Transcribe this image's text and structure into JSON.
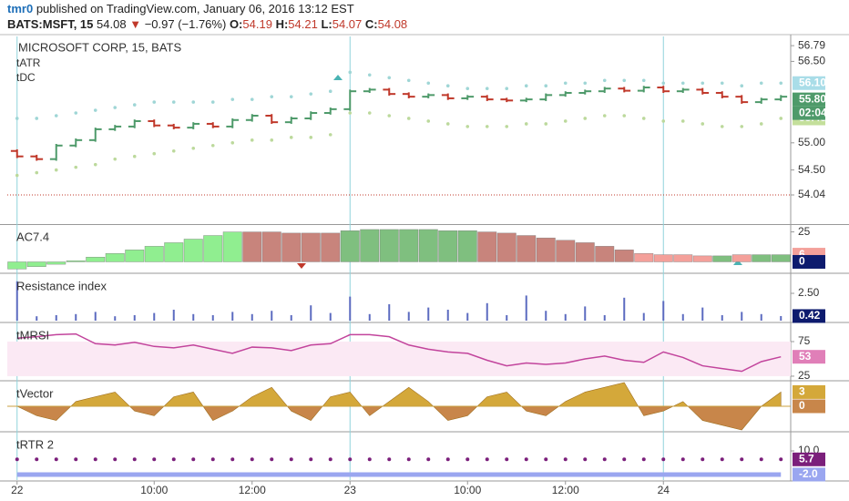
{
  "header": {
    "author": "tmr0",
    "published": "published on TradingView.com, January 06, 2016 13:12 EST",
    "symbol": "BATS:MSFT, 15",
    "last": "54.08",
    "change": "−0.97 (−1.76%)",
    "open_label": "O:",
    "open": "54.19",
    "high_label": "H:",
    "high": "54.21",
    "low_label": "L:",
    "low": "54.07",
    "close_label": "C:",
    "close": "54.08"
  },
  "chart_data": [
    {
      "type": "ohlc",
      "title": "MICROSOFT CORP, 15, BATS",
      "labels": [
        "tATR",
        "tDC"
      ],
      "categories": [
        "22",
        null,
        null,
        null,
        null,
        null,
        null,
        "10:00",
        null,
        null,
        null,
        null,
        "12:00",
        null,
        null,
        null,
        null,
        "23",
        null,
        null,
        null,
        null,
        null,
        "10:00",
        null,
        null,
        null,
        null,
        "12:00",
        null,
        null,
        null,
        null,
        "24",
        null,
        null,
        null,
        null,
        null,
        null
      ],
      "open": [
        54.85,
        54.75,
        54.7,
        54.95,
        55.05,
        55.25,
        55.3,
        55.4,
        55.32,
        55.28,
        55.35,
        55.3,
        55.42,
        55.5,
        55.38,
        55.45,
        55.55,
        55.62,
        55.95,
        55.98,
        55.9,
        55.85,
        55.88,
        55.82,
        55.85,
        55.8,
        55.78,
        55.8,
        55.88,
        55.92,
        55.95,
        56.0,
        55.96,
        56.02,
        55.95,
        55.98,
        55.92,
        55.85,
        55.75,
        55.8
      ],
      "high": [
        54.88,
        54.78,
        54.98,
        55.08,
        55.28,
        55.33,
        55.43,
        55.43,
        55.35,
        55.38,
        55.38,
        55.45,
        55.53,
        55.53,
        55.48,
        55.58,
        55.65,
        55.98,
        56.01,
        56.01,
        55.93,
        55.91,
        55.91,
        55.88,
        55.88,
        55.83,
        55.83,
        55.91,
        55.95,
        55.98,
        56.03,
        56.03,
        56.05,
        56.05,
        56.01,
        56.01,
        55.95,
        55.88,
        55.83,
        55.88
      ],
      "low": [
        54.72,
        54.67,
        54.67,
        54.92,
        55.02,
        55.22,
        55.27,
        55.29,
        55.25,
        55.25,
        55.27,
        55.27,
        55.39,
        55.35,
        55.35,
        55.42,
        55.52,
        55.59,
        55.92,
        55.87,
        55.82,
        55.82,
        55.79,
        55.79,
        55.77,
        55.75,
        55.75,
        55.77,
        55.85,
        55.89,
        55.92,
        55.93,
        55.93,
        55.92,
        55.92,
        55.89,
        55.82,
        55.72,
        55.72,
        55.77
      ],
      "close": [
        54.75,
        54.7,
        54.95,
        55.05,
        55.25,
        55.3,
        55.4,
        55.32,
        55.28,
        55.35,
        55.3,
        55.42,
        55.5,
        55.38,
        55.45,
        55.55,
        55.62,
        55.95,
        55.98,
        55.9,
        55.85,
        55.88,
        55.82,
        55.85,
        55.8,
        55.78,
        55.8,
        55.88,
        55.92,
        55.95,
        56.0,
        55.96,
        56.02,
        55.95,
        55.98,
        55.92,
        55.85,
        55.75,
        55.8,
        55.85
      ],
      "up_color": "#4e9a6a",
      "down_color": "#c0392b",
      "series": [
        {
          "color": "#9fd6d6",
          "values": [
            55.45,
            55.45,
            55.5,
            55.55,
            55.6,
            55.65,
            55.7,
            55.75,
            55.75,
            55.75,
            55.75,
            55.8,
            55.8,
            55.85,
            55.85,
            55.9,
            55.95,
            56.3,
            56.25,
            56.2,
            56.15,
            56.1,
            56.05,
            56.0,
            56.0,
            56.0,
            56.05,
            56.05,
            56.1,
            56.1,
            56.15,
            56.15,
            56.15,
            56.1,
            56.1,
            56.1,
            56.1,
            56.05,
            56.1,
            56.1
          ]
        },
        {
          "color": "#bcd99c",
          "values": [
            54.4,
            54.45,
            54.5,
            54.55,
            54.6,
            54.7,
            54.75,
            54.8,
            54.85,
            54.9,
            54.95,
            55.0,
            55.05,
            55.05,
            55.1,
            55.1,
            55.15,
            55.55,
            55.55,
            55.5,
            55.45,
            55.4,
            55.35,
            55.3,
            55.3,
            55.3,
            55.35,
            55.35,
            55.4,
            55.45,
            55.5,
            55.5,
            55.45,
            55.4,
            55.4,
            55.35,
            55.3,
            55.3,
            55.35,
            55.45
          ]
        }
      ],
      "price_line": 54.04,
      "ylim": [
        53.52,
        56.96
      ],
      "yticks": [
        56.79,
        {
          "value": 56.5,
          "label": "56.50"
        },
        {
          "value": 55,
          "label": "55.00"
        },
        {
          "value": 54.5,
          "label": "54.50"
        },
        54.04
      ],
      "last_labels": [
        {
          "value": 56.1,
          "label": "56.10",
          "color": "#a9dde8"
        },
        {
          "value": 55.8,
          "label": "55.80",
          "color": "#4e9a6a"
        },
        {
          "value": 55.45,
          "label": "55.45",
          "color": "#c4df9b"
        }
      ],
      "countdown": "02:04"
    },
    {
      "type": "bar",
      "title": "AC7.4",
      "values": [
        -6,
        -4,
        -2,
        1,
        4,
        7,
        10,
        13,
        16,
        19,
        22,
        25,
        25,
        25,
        24,
        24,
        24,
        26,
        27,
        27,
        27,
        27,
        26,
        26,
        25,
        24,
        22,
        20,
        18,
        16,
        13,
        10,
        7,
        6,
        6,
        5,
        5,
        6,
        6,
        6
      ],
      "colors": [
        "#90ee90",
        "#90ee90",
        "#90ee90",
        "#90ee90",
        "#90ee90",
        "#90ee90",
        "#90ee90",
        "#90ee90",
        "#90ee90",
        "#90ee90",
        "#90ee90",
        "#90ee90",
        "#c8847c",
        "#c8847c",
        "#c8847c",
        "#c8847c",
        "#c8847c",
        "#7fbf7f",
        "#7fbf7f",
        "#7fbf7f",
        "#7fbf7f",
        "#7fbf7f",
        "#7fbf7f",
        "#7fbf7f",
        "#c8847c",
        "#c8847c",
        "#c8847c",
        "#c8847c",
        "#c8847c",
        "#c8847c",
        "#c8847c",
        "#c8847c",
        "#f4a09a",
        "#f4a09a",
        "#f4a09a",
        "#f4a09a",
        "#7fbf7f",
        "#f4a09a",
        "#7fbf7f",
        "#7fbf7f"
      ],
      "ylim": [
        -8,
        30
      ],
      "yticks": [
        25
      ],
      "last_labels": [
        {
          "value": 6,
          "label": "6",
          "color": "#f4a09a"
        },
        {
          "value": 0,
          "label": "0",
          "color": "#0d1b6e"
        }
      ]
    },
    {
      "type": "bar",
      "title": "Resistance index",
      "color": "#5c6bc0",
      "values": [
        3.6,
        0.4,
        0.5,
        0.6,
        0.8,
        0.4,
        0.5,
        0.7,
        1.0,
        0.6,
        0.5,
        0.8,
        0.6,
        0.9,
        0.5,
        1.4,
        0.7,
        2.2,
        0.6,
        1.5,
        0.8,
        1.2,
        1.0,
        0.7,
        1.6,
        0.5,
        2.3,
        0.9,
        0.6,
        1.3,
        0.5,
        2.1,
        0.7,
        1.8,
        0.6,
        1.2,
        0.5,
        0.8,
        0.6,
        0.42
      ],
      "ylim": [
        0,
        4.17
      ],
      "yticks": [
        {
          "value": 2.5,
          "label": "2.50"
        }
      ],
      "last_labels": [
        {
          "value": 0.42,
          "label": "0.42",
          "color": "#0d1b6e"
        }
      ]
    },
    {
      "type": "line",
      "title": "tMRSI",
      "color": "#c2449c",
      "values": [
        80,
        82,
        85,
        86,
        72,
        70,
        74,
        68,
        66,
        70,
        64,
        58,
        67,
        66,
        62,
        70,
        72,
        85,
        85,
        82,
        70,
        64,
        60,
        58,
        48,
        40,
        44,
        42,
        44,
        50,
        54,
        48,
        45,
        60,
        52,
        40,
        36,
        32,
        46,
        53
      ],
      "ylim": [
        21,
        100
      ],
      "yticks": [
        75,
        25
      ],
      "last_labels": [
        {
          "value": 53,
          "label": "53",
          "color": "#e07fb8"
        }
      ]
    },
    {
      "type": "area",
      "title": "tVector",
      "up_color": "#d4a83a",
      "down_color": "#c8864a",
      "values": [
        0,
        -2,
        -3,
        1,
        2,
        3,
        -1,
        -2,
        2,
        3,
        -3,
        -1,
        2,
        4,
        -1,
        -3,
        2,
        3,
        -2,
        1,
        4,
        1,
        -3,
        -2,
        2,
        3,
        -1,
        -2,
        1,
        3,
        4,
        5,
        -2,
        -1,
        1,
        -3,
        -4,
        -5,
        0,
        3
      ],
      "ylim": [
        -5,
        5
      ],
      "yticks": [],
      "last_labels": [
        {
          "value": 3,
          "label": "3",
          "color": "#d4a83a"
        },
        {
          "value": 0,
          "label": "0",
          "color": "#c8864a"
        }
      ]
    },
    {
      "type": "line",
      "title": "tRTR 2",
      "series": [
        {
          "color": "#7b1f7b",
          "style": "dots",
          "values": [
            5.7,
            5.7,
            5.7,
            5.7,
            5.7,
            5.7,
            5.7,
            5.7,
            5.7,
            5.7,
            5.7,
            5.7,
            5.7,
            5.7,
            5.7,
            5.7,
            5.7,
            5.7,
            5.7,
            5.7,
            5.7,
            5.7,
            5.7,
            5.7,
            5.7,
            5.7,
            5.7,
            5.7,
            5.7,
            5.7,
            5.7,
            5.7,
            5.7,
            5.7,
            5.7,
            5.7,
            5.7,
            5.7,
            5.7,
            5.7
          ]
        },
        {
          "color": "#9aa6f0",
          "values": [
            -2,
            -2,
            -2,
            -2,
            -2,
            -2,
            -2,
            -2,
            -2,
            -2,
            -2,
            -2,
            -2,
            -2,
            -2,
            -2,
            -2,
            -2,
            -2,
            -2,
            -2,
            -2,
            -2,
            -2,
            -2,
            -2,
            -2,
            -2,
            -2,
            -2,
            -2,
            -2,
            -2,
            -2,
            -2,
            -2,
            -2,
            -2,
            -2,
            -2
          ]
        }
      ],
      "ylim": [
        -4.8,
        18.8
      ],
      "yticks": [
        {
          "value": 10,
          "label": "10.0"
        }
      ],
      "last_labels": [
        {
          "value": 5.7,
          "label": "5.7",
          "color": "#7b1f7b"
        },
        {
          "value": -2,
          "label": "-2.0",
          "color": "#9aa6f0"
        }
      ]
    }
  ]
}
